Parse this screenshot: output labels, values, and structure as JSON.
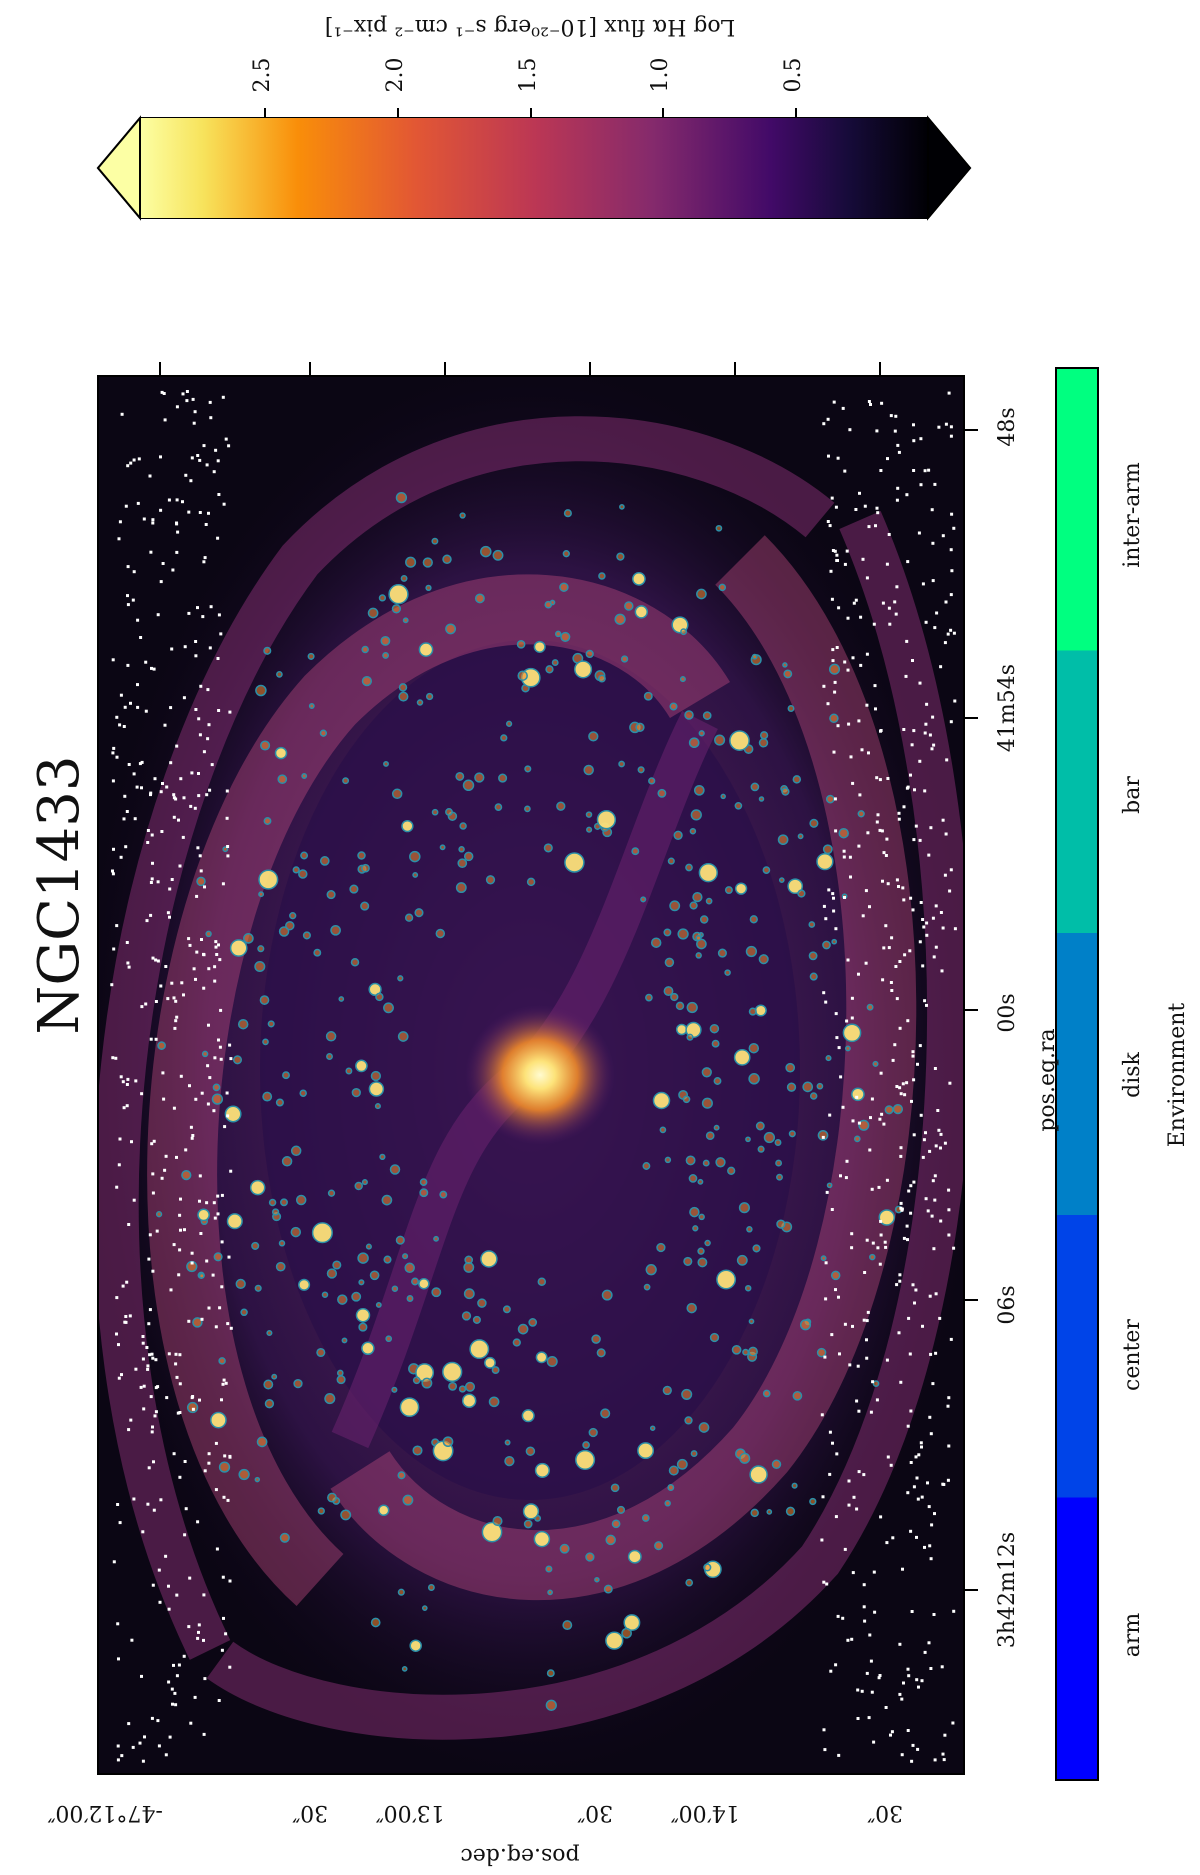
{
  "title": "NGC1433",
  "image": {
    "x_axis_label": "pos.eq.ra",
    "y_axis_label": "pos.eq.dec",
    "ra_ticks": [
      "3h42m12s",
      "06s",
      "00s",
      "41m54s",
      "48s"
    ],
    "dec_ticks": [
      "-47°12′00″",
      "30″",
      "13′00″",
      "30″",
      "14′00″",
      "30″"
    ],
    "palette": {
      "background": "#0b0614",
      "glow": "#f58d1a",
      "bright": "#fff3a8",
      "marker": "#2b8fa8"
    }
  },
  "flux_colorbar": {
    "label": "Log Hα flux [10⁻²⁰erg s⁻¹ cm⁻² pix⁻¹]",
    "ticks": [
      "2.5",
      "2.0",
      "1.5",
      "1.0",
      "0.5"
    ],
    "colors": [
      "#fcffa4",
      "#f98e09",
      "#bc3754",
      "#57106e",
      "#000004"
    ]
  },
  "environment_colorbar": {
    "label": "Environment",
    "categories": [
      {
        "name": "arm",
        "color": "#0000ff"
      },
      {
        "name": "center",
        "color": "#0044e8"
      },
      {
        "name": "disk",
        "color": "#0080c8"
      },
      {
        "name": "bar",
        "color": "#00bea8"
      },
      {
        "name": "inter-arm",
        "color": "#00ff80"
      }
    ]
  }
}
